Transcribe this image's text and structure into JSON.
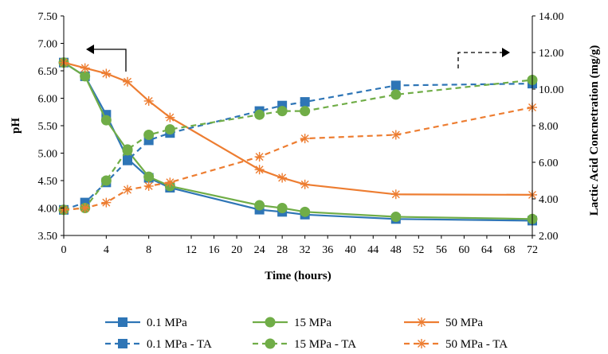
{
  "chart_data": {
    "type": "line",
    "title": "",
    "xlabel": "Time (hours)",
    "ylabel_left": "pH",
    "ylabel_right": "Lactic Acid Concnetration (mg/g)",
    "x_ticks": [
      0,
      4,
      8,
      12,
      16,
      20,
      24,
      28,
      32,
      36,
      40,
      44,
      48,
      52,
      56,
      60,
      64,
      68,
      72
    ],
    "x_break_at": 12,
    "y_left": {
      "range": [
        3.5,
        7.5
      ],
      "ticks": [
        "3.50",
        "4.00",
        "4.50",
        "5.00",
        "5.50",
        "6.00",
        "6.50",
        "7.00",
        "7.50"
      ]
    },
    "y_right": {
      "range": [
        2,
        14
      ],
      "ticks": [
        "2.00",
        "4.00",
        "6.00",
        "8.00",
        "10.00",
        "12.00",
        "14.00"
      ]
    },
    "x_positions": [
      0,
      2,
      4,
      6,
      8,
      10,
      24,
      28,
      32,
      48,
      72
    ],
    "series": [
      {
        "name": "0.1 MPa",
        "axis": "left",
        "color": "#2E75B6",
        "marker": "square",
        "dashed": false,
        "values": [
          6.65,
          6.4,
          5.7,
          4.9,
          4.55,
          4.37,
          3.97,
          3.93,
          3.88,
          3.8,
          3.77
        ]
      },
      {
        "name": "15 MPa",
        "axis": "left",
        "color": "#70AD47",
        "marker": "circle",
        "dashed": false,
        "values": [
          6.65,
          6.4,
          5.6,
          5.05,
          4.57,
          4.4,
          4.05,
          4.0,
          3.93,
          3.84,
          3.8
        ]
      },
      {
        "name": "50 MPa",
        "axis": "left",
        "color": "#ED7D31",
        "marker": "asterisk",
        "dashed": false,
        "values": [
          6.65,
          6.55,
          6.45,
          6.3,
          5.95,
          5.65,
          4.7,
          4.55,
          4.43,
          4.25,
          4.24
        ]
      },
      {
        "name": "0.1 MPa - TA",
        "axis": "right",
        "color": "#2E75B6",
        "marker": "square",
        "dashed": true,
        "values": [
          3.4,
          3.8,
          4.9,
          6.1,
          7.2,
          7.6,
          8.8,
          9.1,
          9.3,
          10.2,
          10.3
        ]
      },
      {
        "name": "15 MPa - TA",
        "axis": "right",
        "color": "#70AD47",
        "marker": "circle",
        "dashed": true,
        "values": [
          3.4,
          3.5,
          5.0,
          6.7,
          7.5,
          7.8,
          8.6,
          8.8,
          8.8,
          9.7,
          10.5
        ]
      },
      {
        "name": "50 MPa - TA",
        "axis": "right",
        "color": "#ED7D31",
        "marker": "asterisk",
        "dashed": true,
        "values": [
          3.4,
          3.5,
          3.8,
          4.5,
          4.7,
          4.9,
          6.3,
          null,
          7.3,
          7.5,
          9.0
        ]
      }
    ],
    "annotations": [
      {
        "type": "arrow",
        "direction": "left",
        "refers_to": "left-axis",
        "style": "solid"
      },
      {
        "type": "arrow",
        "direction": "right",
        "refers_to": "right-axis",
        "style": "dashed"
      }
    ],
    "legend_position": "bottom"
  }
}
